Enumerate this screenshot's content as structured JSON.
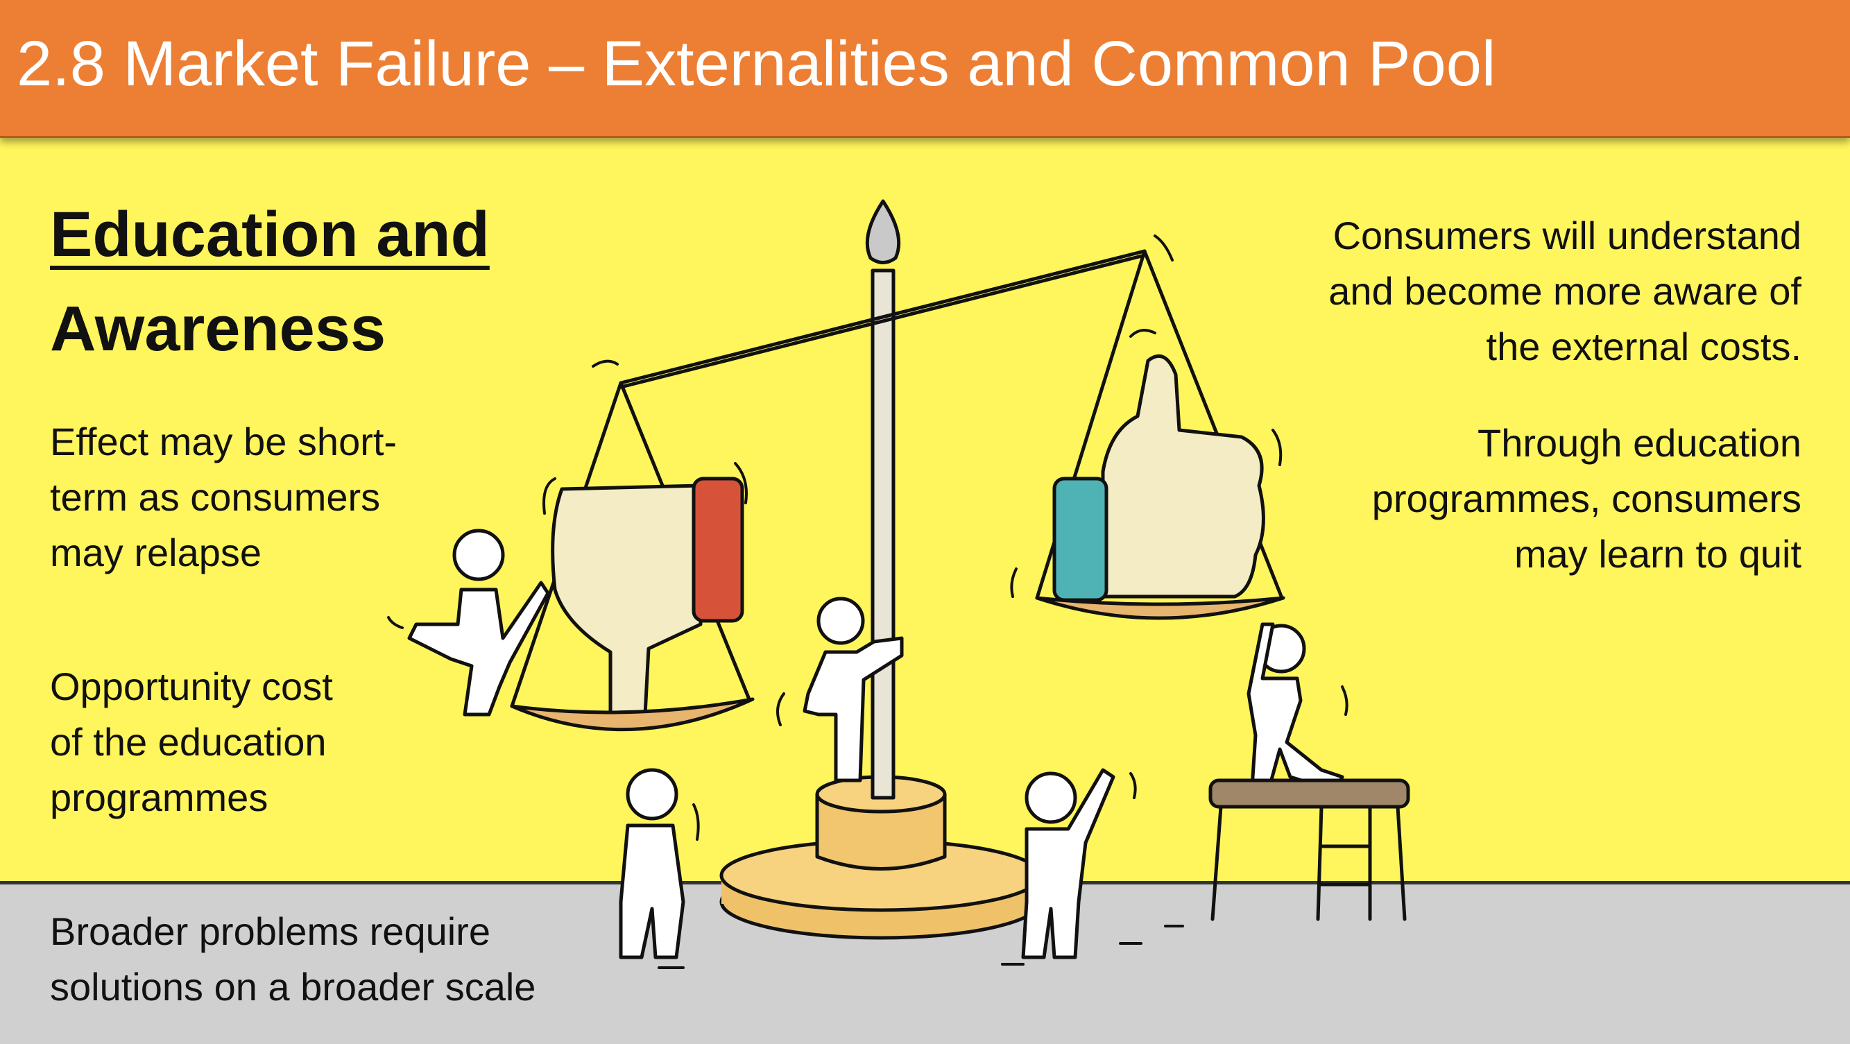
{
  "header": {
    "title": "2.8 Market Failure – Externalities and Common Pool"
  },
  "heading": {
    "line1": "Education and",
    "line2": "Awareness"
  },
  "left_points": [
    {
      "lines": [
        "Effect may be short-",
        "term as consumers",
        "may relapse"
      ]
    },
    {
      "lines": [
        "Opportunity cost",
        "of the education",
        "programmes"
      ]
    },
    {
      "lines": [
        "Broader problems require",
        "solutions on a broader scale"
      ]
    }
  ],
  "right_points": [
    {
      "lines": [
        "Consumers will understand",
        "and become more aware of",
        "the external costs."
      ]
    },
    {
      "lines": [
        "Through education",
        "programmes, consumers",
        "may learn to quit"
      ]
    }
  ],
  "illustration": {
    "icons": [
      "balance-scale-icon",
      "thumbs-down-icon",
      "thumbs-up-icon",
      "stick-figure-icon",
      "stool-icon"
    ],
    "colors": {
      "background": "#fff55c",
      "header": "#ec7f34",
      "floor": "#d0d0d0",
      "thumb_down_cuff": "#d6533a",
      "thumb_up_cuff": "#4fb3b5",
      "pan": "#e8b56e"
    }
  }
}
